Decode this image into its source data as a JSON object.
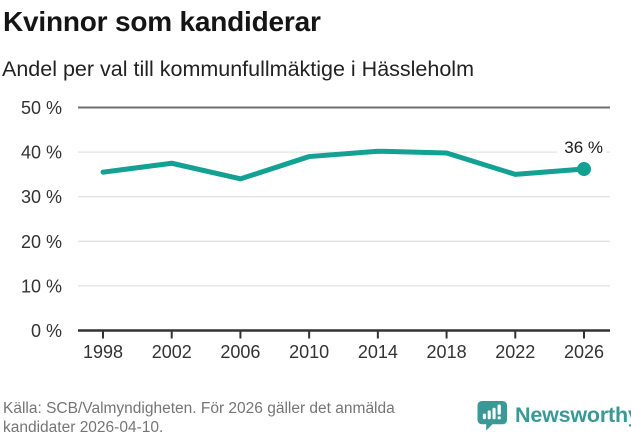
{
  "title": "Kvinnor som kandiderar",
  "subtitle": "Andel per val till kommunfullmäktige i Hässleholm",
  "source_note": "Källa: SCB/Valmyndigheten. För 2026 gäller det anmälda kandidater 2026-04-10.",
  "brand": {
    "name": "Newsworthy",
    "icon": "speech-bubble-bar-chart"
  },
  "colors": {
    "line": "#12a192",
    "brand_teal": "#3a9997",
    "grid_light": "#e3e3e3",
    "grid_dark": "#6f6f6f",
    "axis": "#333333",
    "tick_text": "#333333",
    "annotation_text": "#1a1a1a",
    "muted_text": "#757575"
  },
  "chart_data": {
    "type": "line",
    "title": "Kvinnor som kandiderar",
    "subtitle": "Andel per val till kommunfullmäktige i Hässleholm",
    "x": [
      1998,
      2002,
      2006,
      2010,
      2014,
      2018,
      2022,
      2026
    ],
    "values": [
      35.5,
      37.5,
      34.0,
      39.0,
      40.2,
      39.8,
      35.0,
      36.2
    ],
    "ylim": [
      0,
      50
    ],
    "yticks": [
      0,
      10,
      20,
      30,
      40,
      50
    ],
    "ytick_labels": [
      "0 %",
      "10 %",
      "20 %",
      "30 %",
      "40 %",
      "50 %"
    ],
    "xtick_labels": [
      "1998",
      "2002",
      "2006",
      "2010",
      "2014",
      "2018",
      "2022",
      "2026"
    ],
    "end_label": "36 %",
    "grid": true,
    "legend": false,
    "marker_on_last_point": true
  }
}
